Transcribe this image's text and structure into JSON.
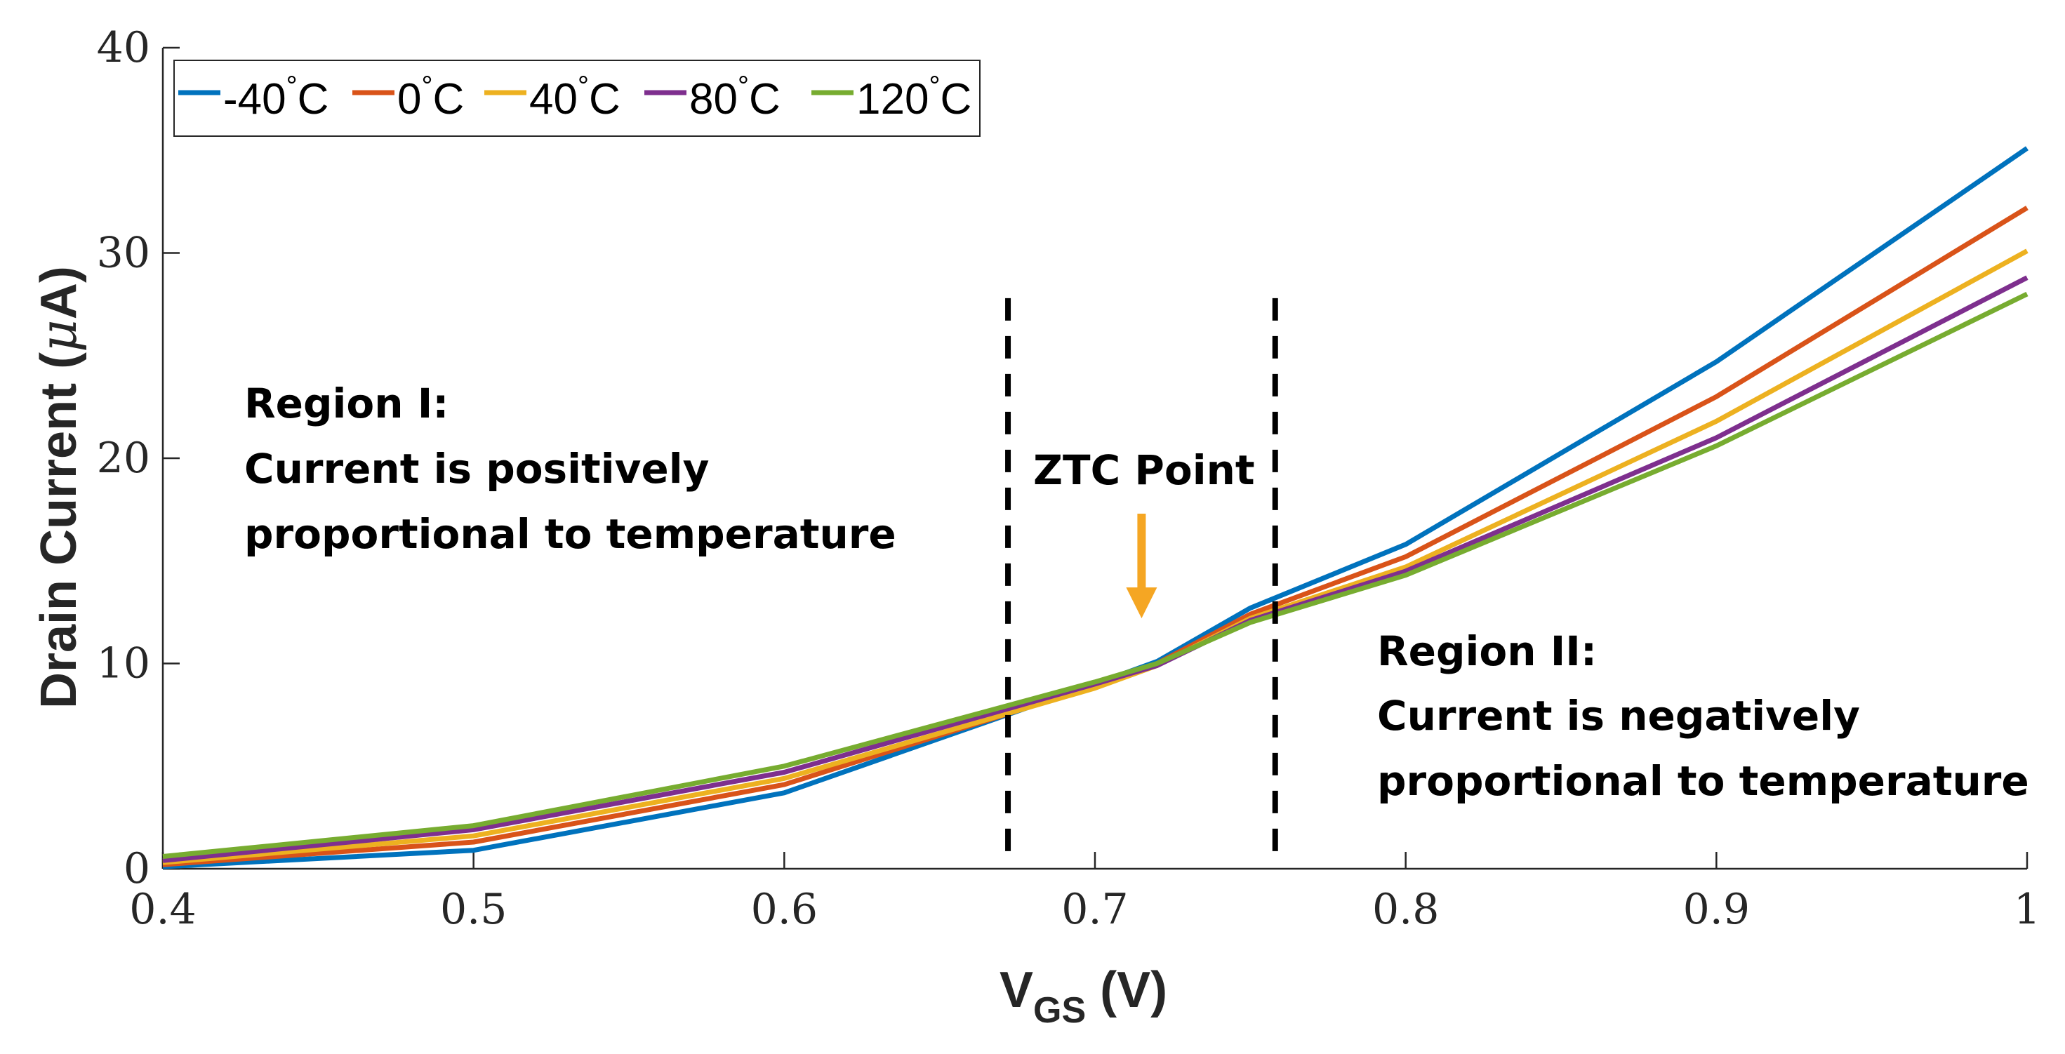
{
  "chart_data": {
    "type": "line",
    "title": "",
    "xlabel": "V",
    "xlabel_sub": "GS",
    "xlabel_unit": " (V)",
    "ylabel": "Drain Current (",
    "ylabel_mu": "μ",
    "ylabel_unit": "A)",
    "xlim": [
      0.4,
      1.0
    ],
    "ylim": [
      0,
      40
    ],
    "x_ticks": [
      0.4,
      0.5,
      0.6,
      0.7,
      0.8,
      0.9,
      1.0
    ],
    "x_tick_labels": [
      "0.4",
      "0.5",
      "0.6",
      "0.7",
      "0.8",
      "0.9",
      "1"
    ],
    "y_ticks": [
      0,
      10,
      20,
      30,
      40
    ],
    "y_tick_labels": [
      "0",
      "10",
      "20",
      "30",
      "40"
    ],
    "grid": false,
    "legend_position": "top-left",
    "x": [
      0.4,
      0.5,
      0.6,
      0.7,
      0.72,
      0.75,
      0.8,
      0.9,
      1.0
    ],
    "series": [
      {
        "name": "-40",
        "unit": "C",
        "color": "#0072BD",
        "values": [
          0.1,
          0.9,
          3.7,
          9.0,
          10.1,
          12.7,
          15.8,
          24.7,
          35.1
        ]
      },
      {
        "name": "0",
        "unit": "C",
        "color": "#D95319",
        "values": [
          0.2,
          1.3,
          4.1,
          8.9,
          10.0,
          12.4,
          15.2,
          23.0,
          32.2
        ]
      },
      {
        "name": "40",
        "unit": "C",
        "color": "#EDB120",
        "values": [
          0.3,
          1.6,
          4.4,
          8.8,
          9.9,
          12.2,
          14.7,
          21.8,
          30.1
        ]
      },
      {
        "name": "80",
        "unit": "C",
        "color": "#7E2F8E",
        "values": [
          0.4,
          1.9,
          4.7,
          9.0,
          9.9,
          12.1,
          14.5,
          21.0,
          28.8
        ]
      },
      {
        "name": "120",
        "unit": "C",
        "color": "#77AC30",
        "values": [
          0.6,
          2.1,
          5.0,
          9.1,
          10.0,
          12.0,
          14.3,
          20.6,
          28.0
        ]
      }
    ],
    "annotations": {
      "region1_title": "Region I:",
      "region1_line1": "Current is positively",
      "region1_line2": "proportional to temperature",
      "ztc_label": "ZTC Point",
      "ztc_x": 0.715,
      "ztc_arrow_top": 17.3,
      "ztc_arrow_bottom": 12.2,
      "arrow_color": "#F5A623",
      "region2_title": "Region II:",
      "region2_line1": "Current is negatively",
      "region2_line2": "proportional to temperature",
      "dashed_lines_x": [
        0.672,
        0.758
      ],
      "dashed_lines_y_top": 27.8
    },
    "legend_degree_symbol": "°"
  }
}
